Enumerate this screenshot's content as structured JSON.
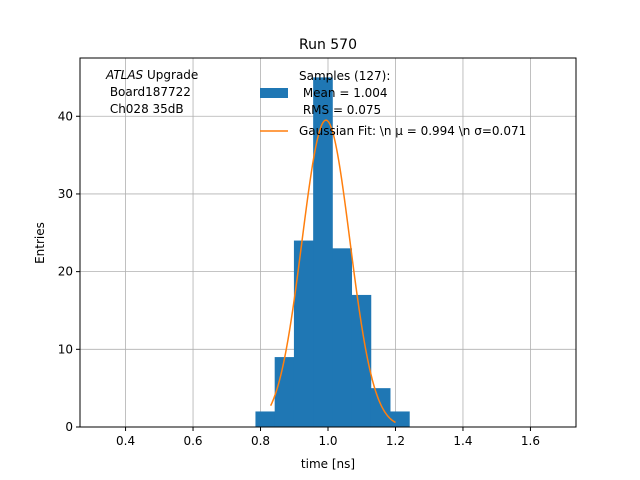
{
  "chart_data": {
    "type": "bar",
    "title": "Run 570",
    "xlabel": "time [ns]",
    "ylabel": "Entries",
    "xlim": [
      0.265,
      1.735
    ],
    "ylim": [
      0,
      47.5
    ],
    "xticks": [
      0.4,
      0.6,
      0.8,
      1.0,
      1.2,
      1.4,
      1.6
    ],
    "xtick_labels": [
      "0.4",
      "0.6",
      "0.8",
      "1.0",
      "1.2",
      "1.4",
      "1.6"
    ],
    "yticks": [
      0,
      10,
      20,
      30,
      40
    ],
    "ytick_labels": [
      "0",
      "10",
      "20",
      "30",
      "40"
    ],
    "grid": true,
    "legend_position": "top-right",
    "histogram": {
      "bin_edges": [
        0.785,
        0.842,
        0.899,
        0.956,
        1.013,
        1.07,
        1.127,
        1.184,
        1.241
      ],
      "counts": [
        2,
        9,
        24,
        45,
        23,
        17,
        5,
        2
      ],
      "color": "#1f77b4"
    },
    "gaussian_fit": {
      "amplitude": 39.5,
      "mu": 0.994,
      "sigma": 0.071,
      "x_start": 0.83,
      "x_end": 1.2,
      "color": "#ff7f0e"
    },
    "legend": {
      "samples_lines": [
        "Samples (127):",
        " Mean = 1.004",
        " RMS = 0.075"
      ],
      "fit_label": "Gaussian Fit: \\n μ = 0.994 \\n σ=0.071"
    },
    "annotation": {
      "italic": "ATLAS",
      "rest": " Upgrade",
      "line2": " Board187722",
      "line3": " Ch028 35dB"
    }
  }
}
